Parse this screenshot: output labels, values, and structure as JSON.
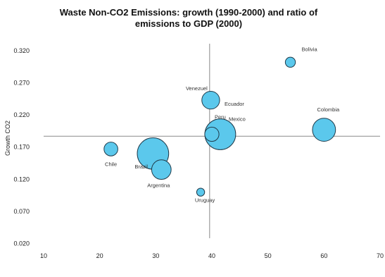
{
  "chart_data": {
    "type": "scatter",
    "title_lines": [
      "Waste Non-CO2 Emissions: growth (1990-2000) and ratio of",
      "emissions to GDP (2000)"
    ],
    "xlabel": "",
    "ylabel": "Growth CO2",
    "xlim": [
      10,
      70
    ],
    "ylim": [
      0.02,
      0.34
    ],
    "x_ticks": [
      "10",
      "20",
      "30",
      "40",
      "50",
      "60",
      "70"
    ],
    "y_ticks": [
      "0.020",
      "0.070",
      "0.120",
      "0.170",
      "0.220",
      "0.270",
      "0.320"
    ],
    "x_tick_values": [
      10,
      20,
      30,
      40,
      50,
      60,
      70
    ],
    "y_tick_values": [
      0.02,
      0.07,
      0.12,
      0.17,
      0.22,
      0.27,
      0.32
    ],
    "crosshair": {
      "x": 39.6,
      "y": 0.187
    },
    "grid": false,
    "legend": "none",
    "bubble_color": "#5bc8ec",
    "bubble_stroke": "#1f3a4a",
    "points": [
      {
        "label": "Bolivia",
        "x": 54,
        "y": 0.302,
        "size": 0.8
      },
      {
        "label": "Venezuel",
        "x": 39.8,
        "y": 0.243,
        "size": 2.5
      },
      {
        "label": "Ecuador",
        "x": 40.5,
        "y": 0.243,
        "size": 0
      },
      {
        "label": "Colombia",
        "x": 60,
        "y": 0.197,
        "size": 4.2
      },
      {
        "label": "Peru",
        "x": 41.5,
        "y": 0.19,
        "size": 7.5
      },
      {
        "label": "Mexico",
        "x": 40,
        "y": 0.19,
        "size": 1.6
      },
      {
        "label": "Chile",
        "x": 22,
        "y": 0.167,
        "size": 1.5
      },
      {
        "label": "Brazil",
        "x": 29.5,
        "y": 0.16,
        "size": 7.8
      },
      {
        "label": "Argentina",
        "x": 31,
        "y": 0.135,
        "size": 3.0
      },
      {
        "label": "Uruguay",
        "x": 38,
        "y": 0.1,
        "size": 0.5
      }
    ]
  }
}
